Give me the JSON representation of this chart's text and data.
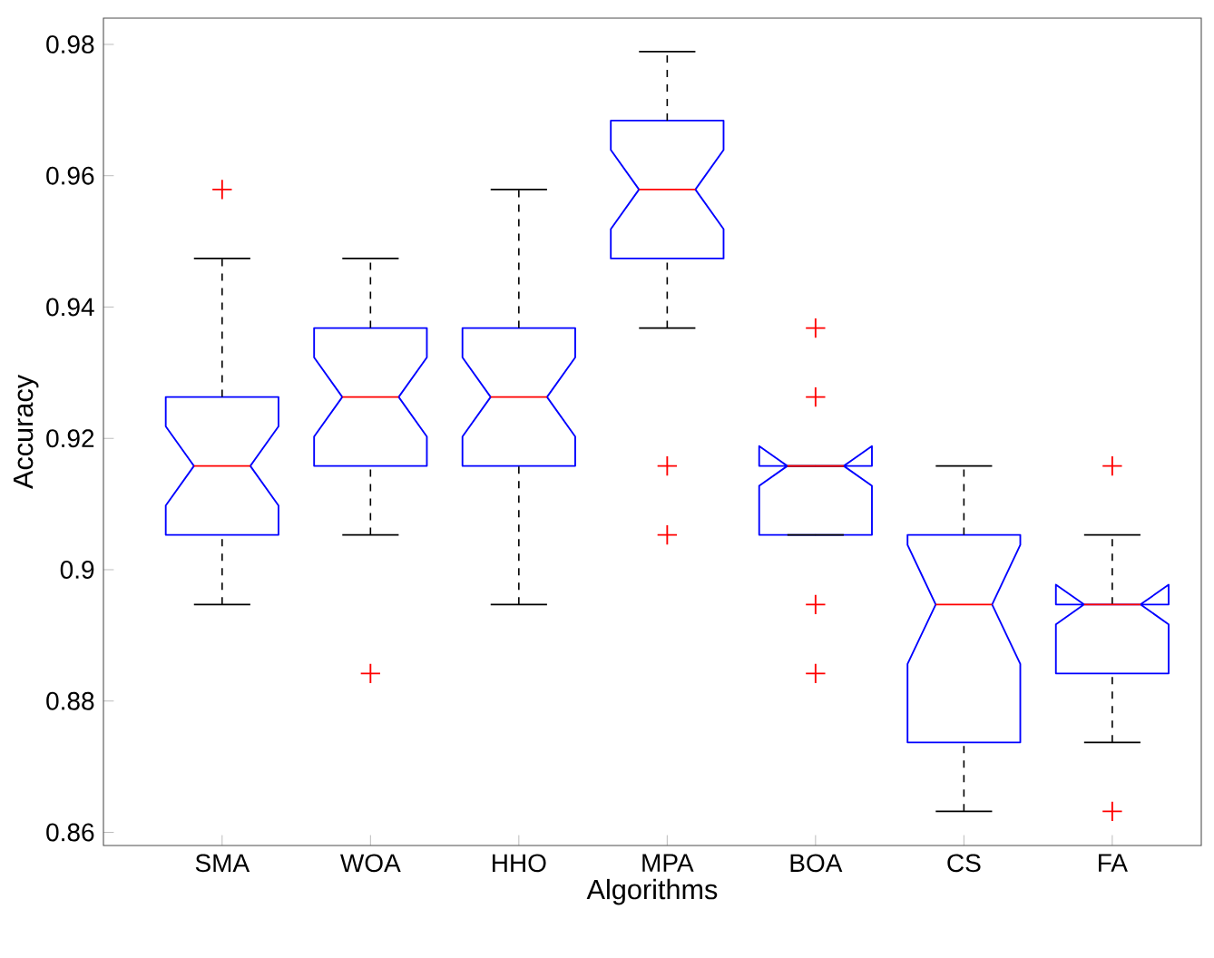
{
  "chart_data": {
    "type": "box",
    "xlabel": "Algorithms",
    "ylabel": "Accuracy",
    "categories": [
      "SMA",
      "WOA",
      "HHO",
      "MPA",
      "BOA",
      "CS",
      "FA"
    ],
    "color": "#0000ff",
    "ylim": [
      0.858,
      0.984
    ],
    "yticks": [
      0.86,
      0.88,
      0.9,
      0.92,
      0.94,
      0.96,
      0.98
    ],
    "boxes": [
      {
        "low": 0.8947,
        "q1": 0.9053,
        "median": 0.9158,
        "q3": 0.9263,
        "high": 0.9474,
        "outliers": [
          0.9579
        ]
      },
      {
        "low": 0.9053,
        "q1": 0.9158,
        "median": 0.9263,
        "q3": 0.9368,
        "high": 0.9474,
        "outliers": [
          0.8842
        ]
      },
      {
        "low": 0.8947,
        "q1": 0.9158,
        "median": 0.9263,
        "q3": 0.9368,
        "high": 0.9579
      },
      {
        "low": 0.9368,
        "q1": 0.9474,
        "median": 0.9579,
        "q3": 0.9684,
        "high": 0.9789,
        "outliers": [
          0.9158,
          0.9053
        ]
      },
      {
        "low": 0.9053,
        "q1": 0.9053,
        "median": 0.9158,
        "q3": 0.9158,
        "high": 0.9158,
        "outliers": [
          0.9368,
          0.9263,
          0.8947,
          0.8842
        ]
      },
      {
        "low": 0.8632,
        "q1": 0.8737,
        "median": 0.8947,
        "q3": 0.9053,
        "high": 0.9158
      },
      {
        "low": 0.8737,
        "q1": 0.8842,
        "median": 0.8947,
        "q3": 0.8947,
        "high": 0.9053,
        "outliers": [
          0.9158,
          0.8632
        ]
      }
    ]
  }
}
